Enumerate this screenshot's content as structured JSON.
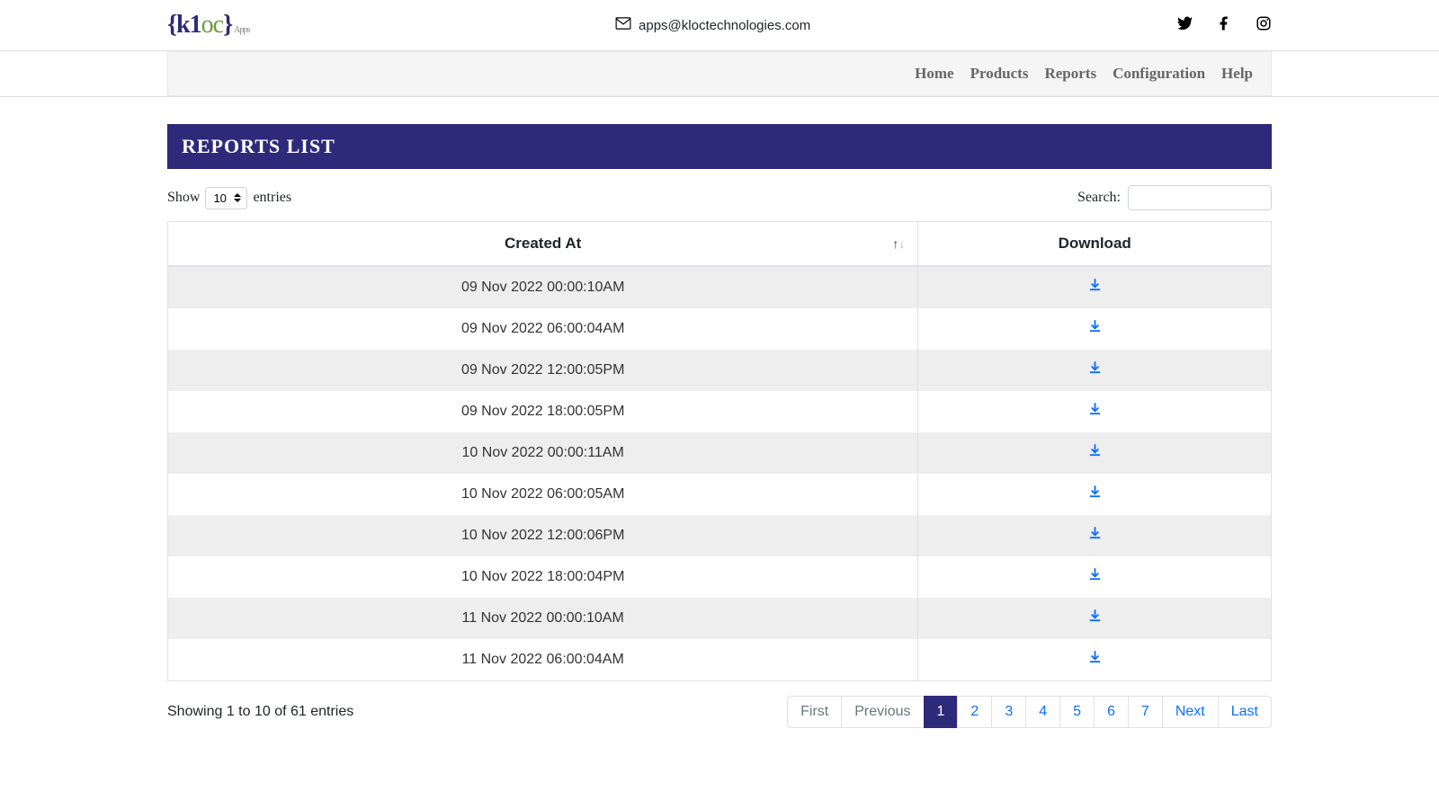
{
  "header": {
    "logo_text_braces": "{",
    "logo_text_k1": "k1",
    "logo_text_oc": "oc",
    "logo_text_brace_close": "}",
    "logo_suffix": "Apps",
    "email": "apps@kloctechnologies.com"
  },
  "nav": {
    "items": [
      "Home",
      "Products",
      "Reports",
      "Configuration",
      "Help"
    ]
  },
  "page": {
    "banner_title": "REPORTS LIST"
  },
  "table_controls": {
    "show_label_prefix": "Show",
    "show_label_suffix": "entries",
    "page_size_selected": "10",
    "search_label": "Search:"
  },
  "table": {
    "columns": [
      {
        "label": "Created At",
        "sortable": true
      },
      {
        "label": "Download",
        "sortable": false
      }
    ],
    "rows": [
      {
        "created_at": "09 Nov 2022 00:00:10AM"
      },
      {
        "created_at": "09 Nov 2022 06:00:04AM"
      },
      {
        "created_at": "09 Nov 2022 12:00:05PM"
      },
      {
        "created_at": "09 Nov 2022 18:00:05PM"
      },
      {
        "created_at": "10 Nov 2022 00:00:11AM"
      },
      {
        "created_at": "10 Nov 2022 06:00:05AM"
      },
      {
        "created_at": "10 Nov 2022 12:00:06PM"
      },
      {
        "created_at": "10 Nov 2022 18:00:04PM"
      },
      {
        "created_at": "11 Nov 2022 00:00:10AM"
      },
      {
        "created_at": "11 Nov 2022 06:00:04AM"
      }
    ]
  },
  "footer": {
    "info_text": "Showing 1 to 10 of 61 entries",
    "pagination": {
      "first": "First",
      "previous": "Previous",
      "pages": [
        "1",
        "2",
        "3",
        "4",
        "5",
        "6",
        "7"
      ],
      "active_page": "1",
      "next": "Next",
      "last": "Last"
    }
  },
  "colors": {
    "brand_purple": "#2d2a7a",
    "brand_green": "#6b9b3a",
    "link_blue": "#0d6efd",
    "row_stripe": "#eeeeee",
    "border": "#dee2e6",
    "nav_bg": "#f5f5f5",
    "text_muted": "#6c757d"
  }
}
